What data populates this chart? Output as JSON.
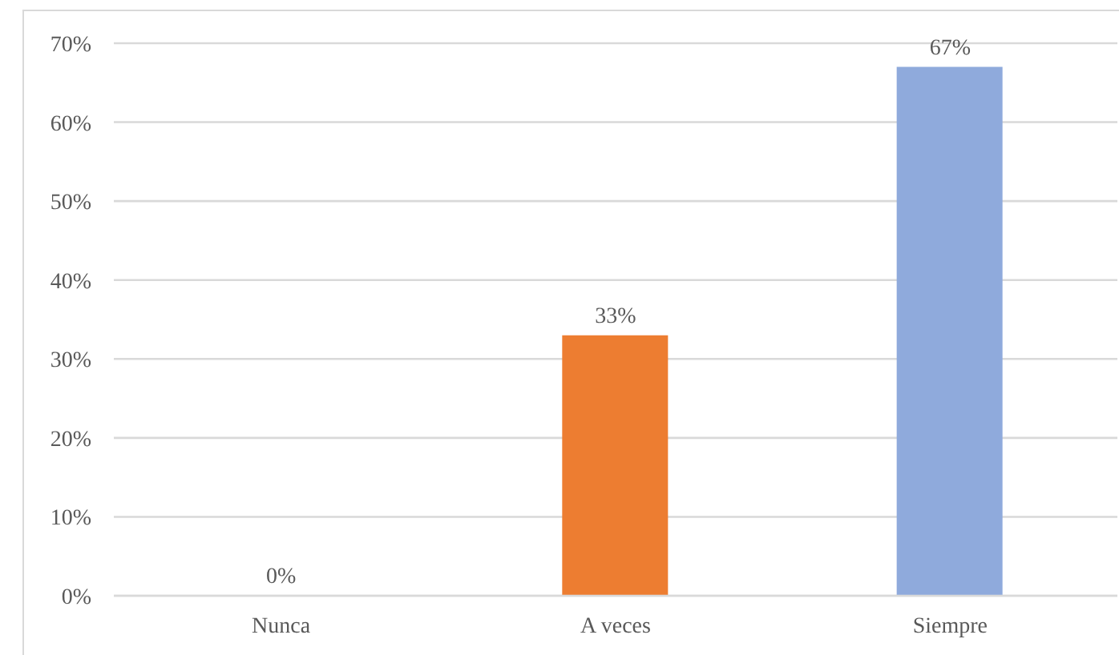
{
  "chart_data": {
    "type": "bar",
    "categories": [
      "Nunca",
      "A veces",
      "Siempre"
    ],
    "values": [
      0,
      33,
      67
    ],
    "colors": [
      "#4472c4",
      "#ed7d31",
      "#8faadc"
    ],
    "value_labels": [
      "0%",
      "33%",
      "67%"
    ],
    "ylim": [
      0,
      70
    ],
    "yticks": [
      {
        "value": 0,
        "label": "0%"
      },
      {
        "value": 10,
        "label": "10%"
      },
      {
        "value": 20,
        "label": "20%"
      },
      {
        "value": 30,
        "label": "30%"
      },
      {
        "value": 40,
        "label": "40%"
      },
      {
        "value": 50,
        "label": "50%"
      },
      {
        "value": 60,
        "label": "60%"
      },
      {
        "value": 70,
        "label": "70%"
      }
    ],
    "grid": "y"
  }
}
